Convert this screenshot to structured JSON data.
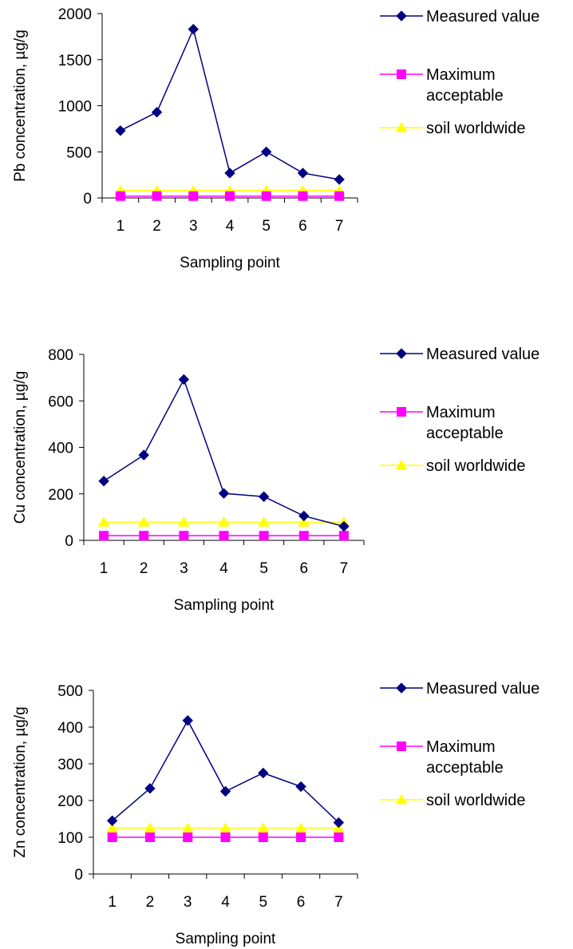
{
  "colors": {
    "measured": "#000080",
    "maximum": "#FF00FF",
    "soil": "#FFFF00",
    "axis": "#000000"
  },
  "chart_data": [
    {
      "type": "line",
      "categories": [
        "1",
        "2",
        "3",
        "4",
        "5",
        "6",
        "7"
      ],
      "ylabel": "Pb concentration, µg/g",
      "xlabel": "Sampling point",
      "ylim": [
        0,
        2000
      ],
      "yticks": [
        0,
        500,
        1000,
        1500,
        2000
      ],
      "grid": false,
      "legend_position": "right",
      "series": [
        {
          "name": "Measured value",
          "marker": "diamond",
          "color_key": "measured",
          "values": [
            730,
            930,
            1830,
            270,
            500,
            270,
            200
          ]
        },
        {
          "name": "Maximum acceptable",
          "name_lines": [
            "Maximum",
            "acceptable"
          ],
          "marker": "square",
          "color_key": "maximum",
          "values": [
            20,
            20,
            20,
            20,
            20,
            20,
            20
          ]
        },
        {
          "name": "soil worldwide",
          "marker": "triangle",
          "color_key": "soil",
          "values": [
            80,
            80,
            80,
            80,
            80,
            80,
            80
          ]
        }
      ]
    },
    {
      "type": "line",
      "categories": [
        "1",
        "2",
        "3",
        "4",
        "5",
        "6",
        "7"
      ],
      "ylabel": "Cu concentration, µg/g",
      "xlabel": "Sampling point",
      "ylim": [
        0,
        800
      ],
      "yticks": [
        0,
        200,
        400,
        600,
        800
      ],
      "grid": false,
      "legend_position": "right",
      "series": [
        {
          "name": "Measured value",
          "marker": "diamond",
          "color_key": "measured",
          "values": [
            255,
            367,
            692,
            202,
            188,
            105,
            60
          ]
        },
        {
          "name": "Maximum acceptable",
          "name_lines": [
            "Maximum",
            "acceptable"
          ],
          "marker": "square",
          "color_key": "maximum",
          "values": [
            20,
            20,
            20,
            20,
            20,
            20,
            20
          ]
        },
        {
          "name": "soil worldwide",
          "marker": "triangle",
          "color_key": "soil",
          "values": [
            78,
            78,
            78,
            78,
            78,
            78,
            78
          ]
        }
      ]
    },
    {
      "type": "line",
      "categories": [
        "1",
        "2",
        "3",
        "4",
        "5",
        "6",
        "7"
      ],
      "ylabel": "Zn concentration, µg/g",
      "xlabel": "Sampling point",
      "ylim": [
        0,
        500
      ],
      "yticks": [
        0,
        100,
        200,
        300,
        400,
        500
      ],
      "grid": false,
      "legend_position": "right",
      "series": [
        {
          "name": "Measured value",
          "marker": "diamond",
          "color_key": "measured",
          "values": [
            145,
            233,
            418,
            225,
            275,
            238,
            140
          ]
        },
        {
          "name": "Maximum acceptable",
          "name_lines": [
            "Maximum",
            "acceptable"
          ],
          "marker": "square",
          "color_key": "maximum",
          "values": [
            100,
            100,
            100,
            100,
            100,
            100,
            100
          ]
        },
        {
          "name": "soil worldwide",
          "marker": "triangle",
          "color_key": "soil",
          "values": [
            125,
            125,
            125,
            125,
            125,
            125,
            125
          ]
        }
      ]
    }
  ]
}
